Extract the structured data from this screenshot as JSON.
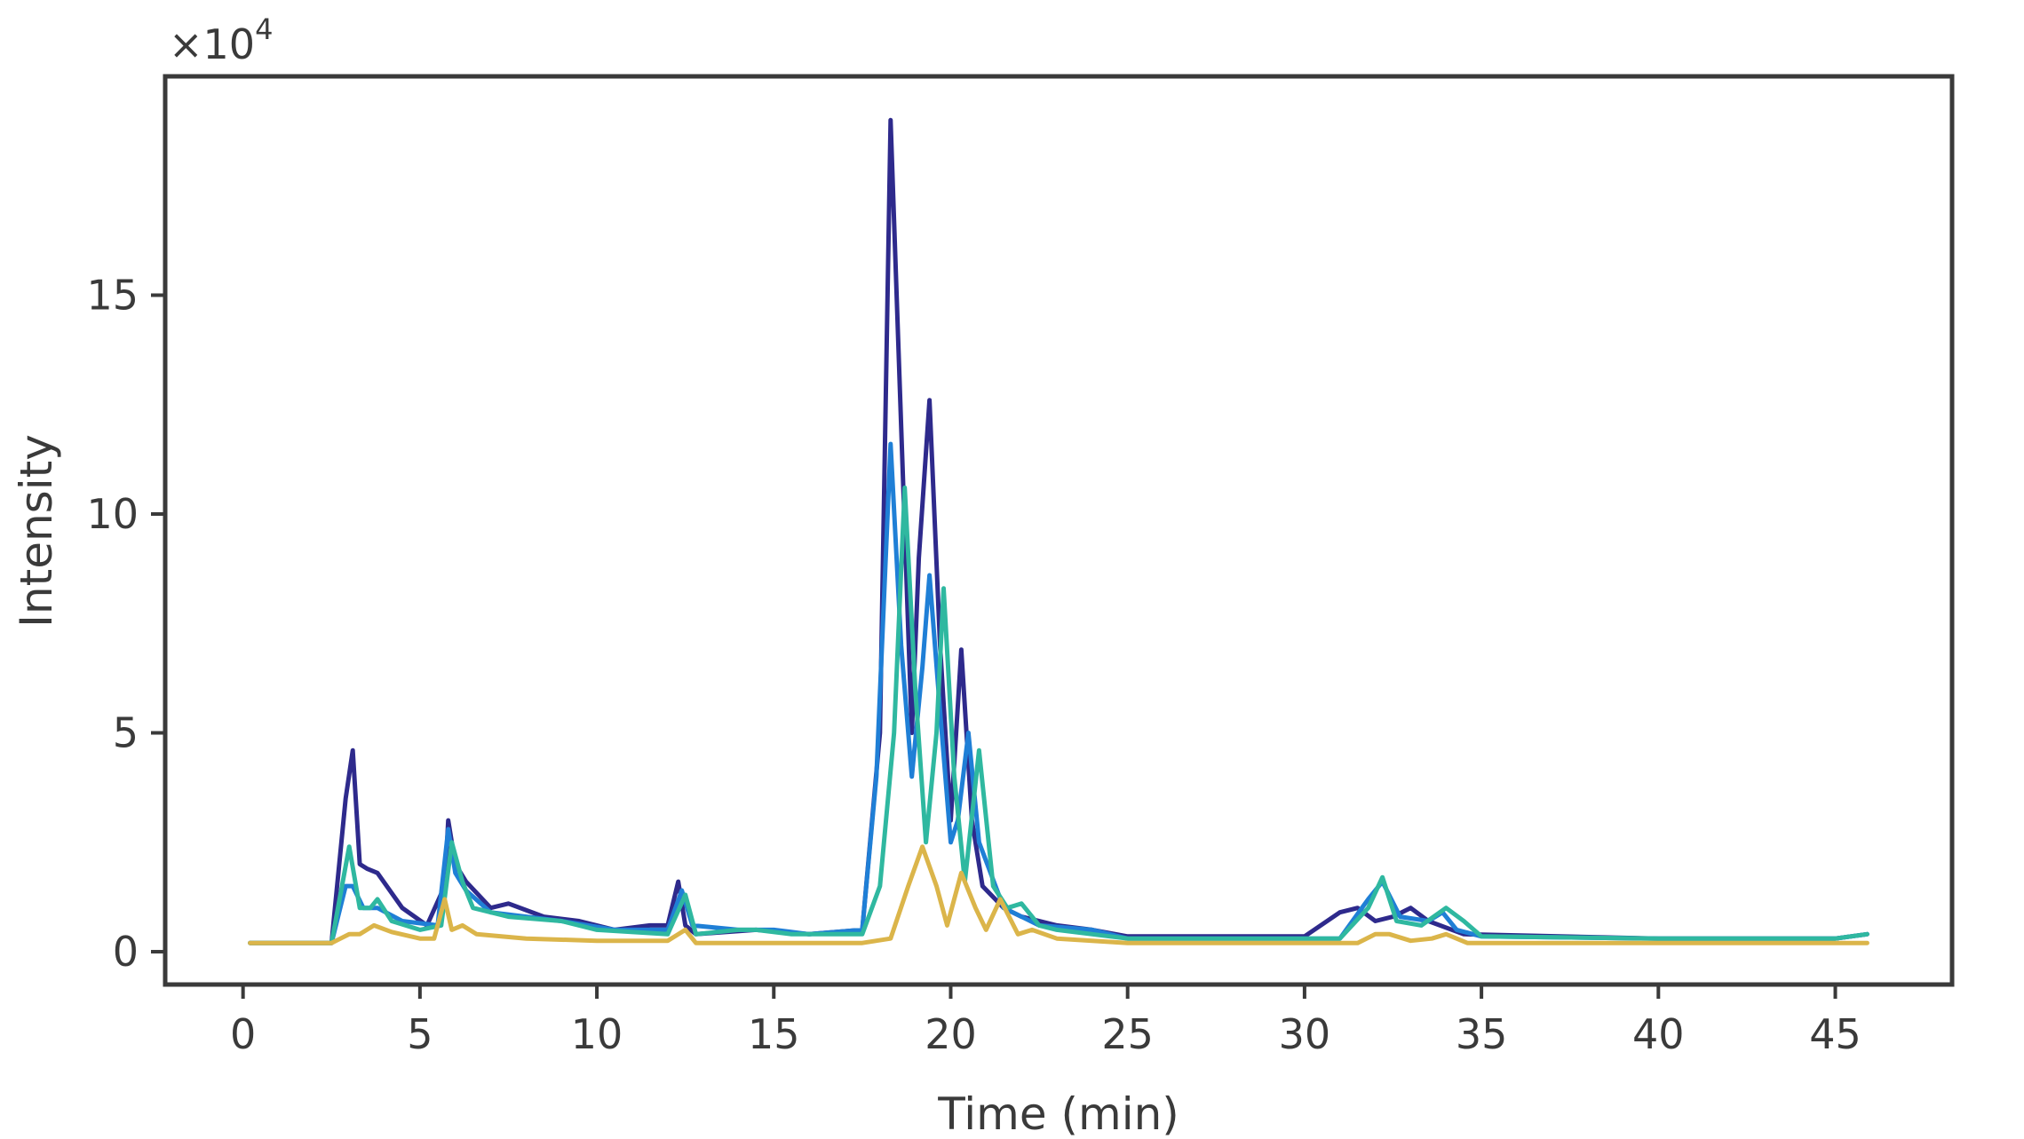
{
  "chart_data": {
    "type": "line",
    "title": "",
    "xlabel": "Time (min)",
    "ylabel": "Intensity",
    "y_multiplier": "×10",
    "y_multiplier_exponent": "4",
    "xlim": [
      -2.2,
      48.3
    ],
    "ylim": [
      -0.75,
      20.0
    ],
    "x_ticks": [
      0,
      5,
      10,
      15,
      20,
      25,
      30,
      35,
      40,
      45
    ],
    "y_ticks": [
      0,
      5,
      10,
      15
    ],
    "grid": false,
    "legend": "none",
    "colors": [
      "#2e2a8c",
      "#1f7fd6",
      "#2fb8a0",
      "#dbb54a"
    ],
    "series": [
      {
        "x": [
          0.2,
          2.5,
          2.9,
          3.1,
          3.3,
          3.5,
          3.8,
          4.5,
          5.2,
          5.7,
          5.8,
          6.0,
          6.3,
          7.0,
          7.5,
          8.5,
          9.5,
          10.5,
          11.5,
          12.0,
          12.3,
          12.5,
          12.8,
          14.5,
          16.0,
          17.5,
          18.0,
          18.3,
          18.6,
          18.9,
          19.1,
          19.4,
          19.7,
          20.0,
          20.3,
          20.6,
          20.9,
          21.5,
          22.0,
          23.0,
          24.0,
          25.0,
          30.0,
          31.0,
          31.5,
          32.0,
          32.5,
          33.0,
          33.5,
          34.5,
          40.0,
          45.0,
          45.9
        ],
        "values": [
          0.2,
          0.2,
          3.5,
          4.6,
          2.0,
          1.9,
          1.8,
          1.0,
          0.6,
          1.5,
          3.0,
          2.0,
          1.6,
          1.0,
          1.1,
          0.8,
          0.7,
          0.5,
          0.6,
          0.6,
          1.6,
          0.6,
          0.4,
          0.5,
          0.4,
          0.5,
          5.0,
          19.0,
          12.0,
          5.0,
          9.0,
          12.6,
          7.0,
          3.0,
          6.9,
          3.0,
          1.5,
          1.0,
          0.8,
          0.6,
          0.5,
          0.35,
          0.35,
          0.9,
          1.0,
          0.7,
          0.8,
          1.0,
          0.7,
          0.4,
          0.3,
          0.3,
          0.4
        ]
      },
      {
        "x": [
          0.2,
          2.5,
          2.9,
          3.1,
          3.4,
          3.8,
          4.5,
          5.5,
          5.8,
          6.0,
          6.3,
          7.0,
          8.0,
          9.0,
          10.5,
          12.0,
          12.4,
          12.7,
          14.0,
          15.0,
          16.0,
          17.5,
          17.9,
          18.3,
          18.6,
          18.9,
          19.2,
          19.4,
          19.7,
          20.0,
          20.2,
          20.5,
          20.8,
          21.5,
          22.5,
          24.0,
          25.0,
          31.0,
          31.8,
          32.2,
          32.7,
          33.5,
          33.9,
          34.3,
          35.0,
          40.0,
          45.0,
          45.9
        ],
        "values": [
          0.2,
          0.2,
          1.5,
          1.5,
          1.0,
          1.0,
          0.7,
          0.6,
          2.8,
          1.8,
          1.4,
          0.9,
          0.8,
          0.7,
          0.5,
          0.5,
          1.4,
          0.6,
          0.5,
          0.5,
          0.4,
          0.5,
          4.0,
          11.6,
          7.0,
          4.0,
          6.5,
          8.6,
          5.5,
          2.5,
          3.0,
          5.0,
          2.5,
          1.0,
          0.6,
          0.5,
          0.3,
          0.3,
          1.2,
          1.6,
          0.8,
          0.7,
          0.9,
          0.5,
          0.35,
          0.3,
          0.3,
          0.4
        ]
      },
      {
        "x": [
          0.2,
          2.5,
          3.0,
          3.3,
          3.6,
          3.8,
          4.2,
          5.0,
          5.6,
          5.9,
          6.2,
          6.5,
          7.5,
          9.0,
          10.0,
          12.0,
          12.5,
          12.8,
          14.0,
          14.5,
          15.5,
          17.5,
          18.0,
          18.4,
          18.7,
          19.0,
          19.3,
          19.6,
          19.8,
          20.1,
          20.4,
          20.8,
          21.2,
          21.6,
          22.0,
          22.5,
          23.0,
          24.0,
          25.0,
          31.0,
          31.8,
          32.2,
          32.6,
          33.3,
          34.0,
          34.5,
          35.0,
          40.0,
          45.0,
          45.9
        ],
        "values": [
          0.2,
          0.2,
          2.4,
          1.0,
          1.0,
          1.2,
          0.7,
          0.5,
          0.6,
          2.5,
          1.6,
          1.0,
          0.8,
          0.7,
          0.5,
          0.4,
          1.3,
          0.4,
          0.5,
          0.5,
          0.4,
          0.4,
          1.5,
          5.0,
          10.6,
          6.0,
          2.5,
          5.0,
          8.3,
          4.0,
          1.6,
          4.6,
          1.5,
          1.0,
          1.1,
          0.6,
          0.5,
          0.4,
          0.3,
          0.3,
          1.0,
          1.7,
          0.7,
          0.6,
          1.0,
          0.7,
          0.35,
          0.3,
          0.3,
          0.4
        ]
      },
      {
        "x": [
          0.2,
          2.5,
          3.0,
          3.3,
          3.7,
          4.2,
          5.0,
          5.4,
          5.7,
          5.9,
          6.2,
          6.6,
          8.0,
          10.0,
          12.0,
          12.5,
          12.8,
          17.5,
          18.3,
          18.8,
          19.2,
          19.6,
          19.9,
          20.3,
          20.7,
          21.0,
          21.4,
          21.9,
          22.3,
          23.0,
          25.0,
          31.5,
          32.0,
          32.4,
          33.0,
          33.6,
          34.0,
          34.6,
          35.2,
          40.0,
          45.0,
          45.9
        ],
        "values": [
          0.2,
          0.2,
          0.4,
          0.4,
          0.6,
          0.45,
          0.3,
          0.3,
          1.2,
          0.5,
          0.6,
          0.4,
          0.3,
          0.25,
          0.25,
          0.5,
          0.2,
          0.2,
          0.3,
          1.5,
          2.4,
          1.5,
          0.6,
          1.8,
          1.0,
          0.5,
          1.2,
          0.4,
          0.5,
          0.3,
          0.2,
          0.2,
          0.4,
          0.4,
          0.25,
          0.3,
          0.4,
          0.2,
          0.2,
          0.2,
          0.2,
          0.2
        ]
      }
    ]
  }
}
